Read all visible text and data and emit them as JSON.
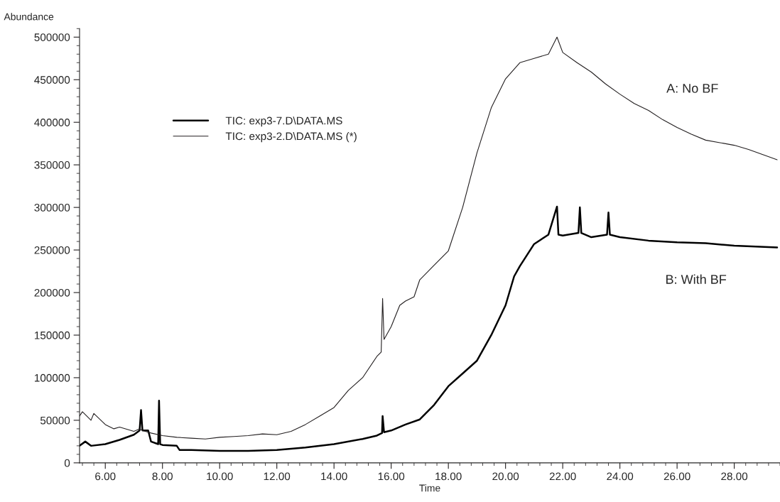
{
  "chart_data": {
    "type": "line",
    "xlabel": "Time",
    "ylabel": "Abundance",
    "xlim": [
      5.1,
      29.6
    ],
    "ylim": [
      0,
      510000
    ],
    "xticks": [
      {
        "value": 6,
        "label": "6.00"
      },
      {
        "value": 8,
        "label": "8.00"
      },
      {
        "value": 10,
        "label": "10.00"
      },
      {
        "value": 12,
        "label": "12.00"
      },
      {
        "value": 14,
        "label": "14.00"
      },
      {
        "value": 16,
        "label": "16.00"
      },
      {
        "value": 18,
        "label": "18.00"
      },
      {
        "value": 20,
        "label": "20.00"
      },
      {
        "value": 22,
        "label": "22.00"
      },
      {
        "value": 24,
        "label": "24.00"
      },
      {
        "value": 26,
        "label": "26.00"
      },
      {
        "value": 28,
        "label": "28.00"
      }
    ],
    "yticks": [
      0,
      50000,
      100000,
      150000,
      200000,
      250000,
      300000,
      350000,
      400000,
      450000,
      500000
    ],
    "grid": false,
    "legend": "top left",
    "marker": "none",
    "line_style": "solid",
    "annotations": [
      "A: No BF",
      "B: With BF"
    ],
    "series": [
      {
        "name": "TIC: exp3-7.D\\DATA.MS",
        "color": "#000000",
        "x": [
          5.1,
          5.3,
          5.5,
          6.0,
          6.5,
          7.0,
          7.2,
          7.25,
          7.3,
          7.5,
          7.6,
          7.85,
          7.88,
          7.92,
          8.0,
          8.5,
          8.6,
          9.0,
          10.0,
          11.0,
          12.0,
          13.0,
          14.0,
          15.0,
          15.5,
          15.68,
          15.7,
          15.75,
          16.0,
          16.5,
          17.0,
          17.5,
          18.0,
          18.5,
          19.0,
          19.5,
          20.0,
          20.3,
          20.5,
          21.0,
          21.5,
          21.8,
          21.85,
          22.0,
          22.55,
          22.6,
          22.65,
          23.0,
          23.55,
          23.6,
          23.65,
          24.0,
          25.0,
          26.0,
          27.0,
          28.0,
          29.5
        ],
        "values": [
          20000,
          25000,
          20000,
          22000,
          27000,
          33000,
          38000,
          62000,
          38000,
          38000,
          25000,
          22000,
          73000,
          22000,
          21000,
          20000,
          15000,
          15000,
          14000,
          14000,
          15000,
          18000,
          22000,
          28000,
          32000,
          35000,
          55000,
          36000,
          38000,
          45000,
          51000,
          68000,
          90000,
          105000,
          120000,
          150000,
          185000,
          219000,
          231000,
          257000,
          268000,
          301000,
          268000,
          267000,
          270000,
          300000,
          270000,
          265000,
          268000,
          294000,
          268000,
          265000,
          261000,
          259000,
          258000,
          255000,
          253000
        ]
      },
      {
        "name": "TIC: exp3-2.D\\DATA.MS (*)",
        "color": "#231f20",
        "x": [
          5.1,
          5.2,
          5.5,
          5.6,
          6.0,
          6.3,
          6.5,
          7.0,
          7.2,
          7.3,
          7.6,
          8.0,
          8.5,
          9.0,
          9.5,
          10.0,
          10.5,
          11.0,
          11.5,
          12.0,
          12.5,
          13.0,
          13.5,
          14.0,
          14.5,
          15.0,
          15.5,
          15.65,
          15.7,
          15.75,
          16.0,
          16.3,
          16.5,
          16.8,
          17.0,
          17.5,
          18.0,
          18.5,
          19.0,
          19.5,
          20.0,
          20.5,
          21.0,
          21.5,
          21.8,
          22.0,
          22.5,
          23.0,
          23.5,
          24.0,
          24.5,
          25.0,
          25.5,
          26.0,
          26.5,
          27.0,
          27.5,
          28.0,
          28.5,
          29.0,
          29.5
        ],
        "values": [
          55000,
          60000,
          50000,
          58000,
          45000,
          40000,
          42000,
          37000,
          40000,
          38000,
          35000,
          32000,
          30000,
          29000,
          28000,
          30000,
          31000,
          32000,
          34000,
          33000,
          37000,
          45000,
          55000,
          65000,
          85000,
          100000,
          125000,
          130000,
          193000,
          145000,
          160000,
          185000,
          190000,
          195000,
          215000,
          232000,
          249000,
          300000,
          364000,
          417000,
          451000,
          470000,
          475000,
          480000,
          500000,
          482000,
          470000,
          459000,
          445000,
          433000,
          422000,
          414000,
          403000,
          394000,
          386000,
          379000,
          376000,
          373000,
          368000,
          362000,
          356000
        ]
      }
    ]
  }
}
